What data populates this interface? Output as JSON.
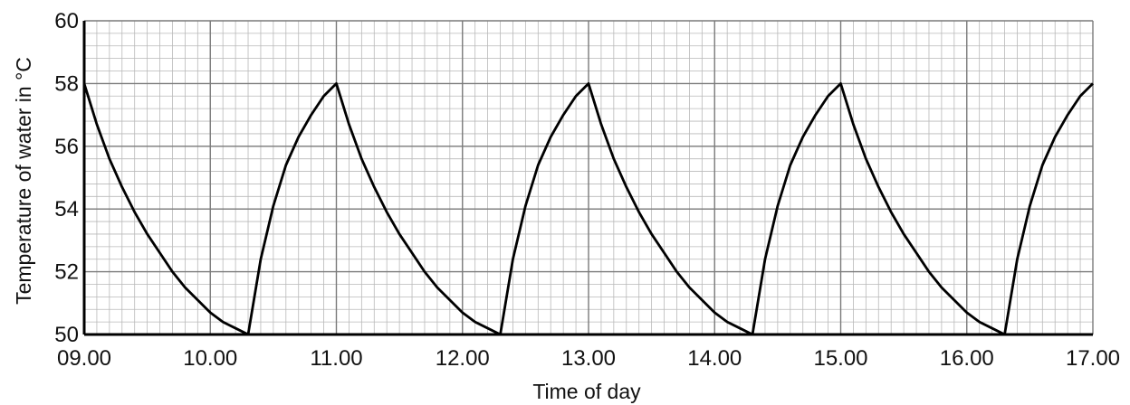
{
  "chart_data": {
    "type": "line",
    "title": "",
    "xlabel": "Time of day",
    "ylabel": "Temperature of water in °C",
    "xlim": [
      9.0,
      17.0
    ],
    "ylim": [
      50,
      60
    ],
    "x_ticks": [
      9,
      10,
      11,
      12,
      13,
      14,
      15,
      16,
      17
    ],
    "x_tick_labels": [
      "09.00",
      "10.00",
      "11.00",
      "12.00",
      "13.00",
      "14.00",
      "15.00",
      "16.00",
      "17.00"
    ],
    "y_ticks": [
      50,
      52,
      54,
      56,
      58,
      60
    ],
    "y_tick_labels": [
      "50",
      "52",
      "54",
      "56",
      "58",
      "60"
    ],
    "grid": true,
    "legend": "none",
    "series": [
      {
        "color": "#000000",
        "points": [
          [
            9.0,
            58.0
          ],
          [
            9.1,
            56.7
          ],
          [
            9.2,
            55.6
          ],
          [
            9.3,
            54.7
          ],
          [
            9.4,
            53.9
          ],
          [
            9.5,
            53.2
          ],
          [
            9.6,
            52.6
          ],
          [
            9.7,
            52.0
          ],
          [
            9.8,
            51.5
          ],
          [
            9.9,
            51.1
          ],
          [
            10.0,
            50.7
          ],
          [
            10.1,
            50.4
          ],
          [
            10.2,
            50.2
          ],
          [
            10.3,
            50.0
          ],
          [
            10.4,
            52.4
          ],
          [
            10.5,
            54.1
          ],
          [
            10.6,
            55.4
          ],
          [
            10.7,
            56.3
          ],
          [
            10.8,
            57.0
          ],
          [
            10.9,
            57.6
          ],
          [
            11.0,
            58.0
          ],
          [
            11.1,
            56.7
          ],
          [
            11.2,
            55.6
          ],
          [
            11.3,
            54.7
          ],
          [
            11.4,
            53.9
          ],
          [
            11.5,
            53.2
          ],
          [
            11.6,
            52.6
          ],
          [
            11.7,
            52.0
          ],
          [
            11.8,
            51.5
          ],
          [
            11.9,
            51.1
          ],
          [
            12.0,
            50.7
          ],
          [
            12.1,
            50.4
          ],
          [
            12.2,
            50.2
          ],
          [
            12.3,
            50.0
          ],
          [
            12.4,
            52.4
          ],
          [
            12.5,
            54.1
          ],
          [
            12.6,
            55.4
          ],
          [
            12.7,
            56.3
          ],
          [
            12.8,
            57.0
          ],
          [
            12.9,
            57.6
          ],
          [
            13.0,
            58.0
          ],
          [
            13.1,
            56.7
          ],
          [
            13.2,
            55.6
          ],
          [
            13.3,
            54.7
          ],
          [
            13.4,
            53.9
          ],
          [
            13.5,
            53.2
          ],
          [
            13.6,
            52.6
          ],
          [
            13.7,
            52.0
          ],
          [
            13.8,
            51.5
          ],
          [
            13.9,
            51.1
          ],
          [
            14.0,
            50.7
          ],
          [
            14.1,
            50.4
          ],
          [
            14.2,
            50.2
          ],
          [
            14.3,
            50.0
          ],
          [
            14.4,
            52.4
          ],
          [
            14.5,
            54.1
          ],
          [
            14.6,
            55.4
          ],
          [
            14.7,
            56.3
          ],
          [
            14.8,
            57.0
          ],
          [
            14.9,
            57.6
          ],
          [
            15.0,
            58.0
          ],
          [
            15.1,
            56.7
          ],
          [
            15.2,
            55.6
          ],
          [
            15.3,
            54.7
          ],
          [
            15.4,
            53.9
          ],
          [
            15.5,
            53.2
          ],
          [
            15.6,
            52.6
          ],
          [
            15.7,
            52.0
          ],
          [
            15.8,
            51.5
          ],
          [
            15.9,
            51.1
          ],
          [
            16.0,
            50.7
          ],
          [
            16.1,
            50.4
          ],
          [
            16.2,
            50.2
          ],
          [
            16.3,
            50.0
          ],
          [
            16.4,
            52.4
          ],
          [
            16.5,
            54.1
          ],
          [
            16.6,
            55.4
          ],
          [
            16.7,
            56.3
          ],
          [
            16.8,
            57.0
          ],
          [
            16.9,
            57.6
          ],
          [
            17.0,
            58.0
          ]
        ]
      }
    ]
  }
}
